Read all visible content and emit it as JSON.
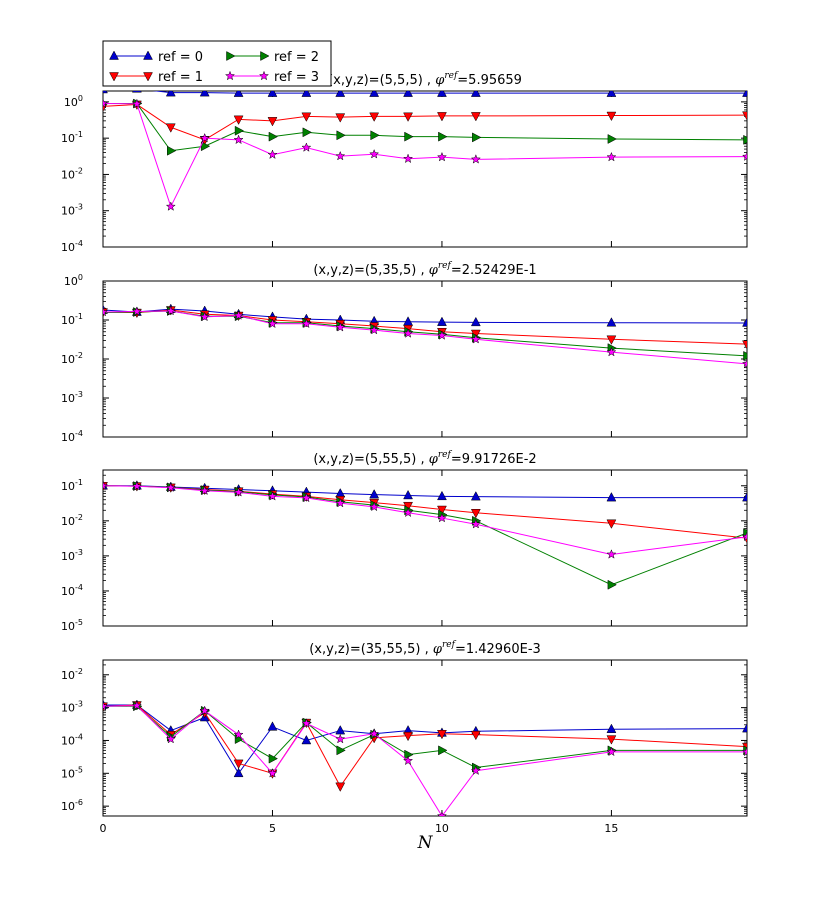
{
  "chart_data": {
    "type": "line",
    "xlabel": "N",
    "xlim": [
      0,
      19
    ],
    "x_ticks": [
      0,
      5,
      10,
      15
    ],
    "legend": {
      "placement": "top-left",
      "entries": [
        "ref = 0",
        "ref = 1",
        "ref = 2",
        "ref = 3"
      ]
    },
    "series_styles": [
      {
        "name": "ref = 0",
        "color": "#0000cc",
        "marker": "triangle-up"
      },
      {
        "name": "ref = 1",
        "color": "#ff0000",
        "marker": "triangle-down"
      },
      {
        "name": "ref = 2",
        "color": "#008000",
        "marker": "triangle-right"
      },
      {
        "name": "ref = 3",
        "color": "#ff00ff",
        "marker": "star"
      }
    ],
    "x": [
      0,
      1,
      2,
      3,
      4,
      5,
      6,
      7,
      8,
      9,
      10,
      11,
      15,
      19
    ],
    "panels": [
      {
        "title_prefix": "(x,y,z)=(5,5,5) , ",
        "phi": "φ",
        "phi_sup": "ref",
        "title_value": "=5.95659",
        "yscale": "log",
        "ylim_exp": [
          -4,
          0.3
        ],
        "y_ticks_exp": [
          -4,
          -3,
          -2,
          -1,
          0
        ],
        "y_tick_labels": [
          "10",
          "10",
          "10",
          "10",
          "10"
        ],
        "y_tick_sups": [
          "-4",
          "-3",
          "-2",
          "-1",
          "0"
        ],
        "series": [
          {
            "name": "ref = 0",
            "values": [
              2.2,
              2.3,
              1.8,
              1.8,
              1.75,
              1.75,
              1.75,
              1.75,
              1.75,
              1.75,
              1.75,
              1.75,
              1.75,
              1.75
            ]
          },
          {
            "name": "ref = 1",
            "values": [
              0.75,
              0.85,
              0.2,
              0.09,
              0.33,
              0.3,
              0.4,
              0.38,
              0.4,
              0.4,
              0.41,
              0.41,
              0.42,
              0.43
            ]
          },
          {
            "name": "ref = 2",
            "values": [
              0.9,
              0.9,
              0.045,
              0.06,
              0.16,
              0.11,
              0.145,
              0.12,
              0.12,
              0.11,
              0.11,
              0.105,
              0.095,
              0.09
            ]
          },
          {
            "name": "ref = 3",
            "values": [
              0.9,
              0.88,
              0.0013,
              0.1,
              0.09,
              0.035,
              0.055,
              0.032,
              0.036,
              0.027,
              0.03,
              0.026,
              0.03,
              0.031
            ]
          }
        ]
      },
      {
        "title_prefix": "(x,y,z)=(5,35,5) , ",
        "phi": "φ",
        "phi_sup": "ref",
        "title_value": "=2.52429E-1",
        "yscale": "log",
        "ylim_exp": [
          -4,
          0
        ],
        "y_ticks_exp": [
          -4,
          -3,
          -2,
          -1,
          0
        ],
        "y_tick_labels": [
          "10",
          "10",
          "10",
          "10",
          "10"
        ],
        "y_tick_sups": [
          "-4",
          "-3",
          "-2",
          "-1",
          "0"
        ],
        "series": [
          {
            "name": "ref = 0",
            "values": [
              0.18,
              0.16,
              0.19,
              0.17,
              0.14,
              0.12,
              0.105,
              0.1,
              0.093,
              0.09,
              0.088,
              0.087,
              0.085,
              0.084
            ]
          },
          {
            "name": "ref = 1",
            "values": [
              0.16,
              0.155,
              0.18,
              0.14,
              0.13,
              0.1,
              0.09,
              0.08,
              0.07,
              0.06,
              0.05,
              0.045,
              0.032,
              0.024
            ]
          },
          {
            "name": "ref = 2",
            "values": [
              0.155,
              0.16,
              0.17,
              0.125,
              0.125,
              0.085,
              0.085,
              0.07,
              0.06,
              0.05,
              0.043,
              0.035,
              0.019,
              0.012
            ]
          },
          {
            "name": "ref = 3",
            "values": [
              0.16,
              0.165,
              0.17,
              0.12,
              0.13,
              0.08,
              0.08,
              0.065,
              0.055,
              0.045,
              0.04,
              0.032,
              0.015,
              0.0075
            ]
          }
        ]
      },
      {
        "title_prefix": "(x,y,z)=(5,55,5) , ",
        "phi": "φ",
        "phi_sup": "ref",
        "title_value": "=9.91726E-2",
        "yscale": "log",
        "ylim_exp": [
          -5,
          -0.55
        ],
        "y_ticks_exp": [
          -5,
          -4,
          -3,
          -2,
          -1
        ],
        "y_tick_labels": [
          "10",
          "10",
          "10",
          "10",
          "10"
        ],
        "y_tick_sups": [
          "-5",
          "-4",
          "-3",
          "-2",
          "-1"
        ],
        "series": [
          {
            "name": "ref = 0",
            "values": [
              0.1,
              0.1,
              0.092,
              0.085,
              0.078,
              0.072,
              0.066,
              0.06,
              0.056,
              0.053,
              0.05,
              0.049,
              0.046,
              0.046
            ]
          },
          {
            "name": "ref = 1",
            "values": [
              0.1,
              0.098,
              0.09,
              0.078,
              0.07,
              0.058,
              0.05,
              0.04,
              0.033,
              0.027,
              0.021,
              0.017,
              0.0085,
              0.0032
            ]
          },
          {
            "name": "ref = 2",
            "values": [
              0.1,
              0.098,
              0.09,
              0.075,
              0.068,
              0.055,
              0.048,
              0.035,
              0.028,
              0.02,
              0.015,
              0.01,
              0.00015,
              0.0045
            ]
          },
          {
            "name": "ref = 3",
            "values": [
              0.1,
              0.097,
              0.088,
              0.072,
              0.065,
              0.05,
              0.045,
              0.032,
              0.025,
              0.017,
              0.012,
              0.008,
              0.0011,
              0.0035
            ]
          }
        ]
      },
      {
        "title_prefix": "(x,y,z)=(35,55,5) , ",
        "phi": "φ",
        "phi_sup": "ref",
        "title_value": "=1.42960E-3",
        "yscale": "log",
        "ylim_exp": [
          -6.3,
          -1.55
        ],
        "y_ticks_exp": [
          -6,
          -5,
          -4,
          -3,
          -2
        ],
        "y_tick_labels": [
          "10",
          "10",
          "10",
          "10",
          "10"
        ],
        "y_tick_sups": [
          "-6",
          "-5",
          "-4",
          "-3",
          "-2"
        ],
        "series": [
          {
            "name": "ref = 0",
            "values": [
              0.0012,
              0.0012,
              0.0002,
              0.0005,
              1e-05,
              0.00026,
              0.0001,
              0.0002,
              0.00016,
              0.0002,
              0.00017,
              0.00019,
              0.00022,
              0.00023
            ]
          },
          {
            "name": "ref = 1",
            "values": [
              0.0011,
              0.0012,
              0.00015,
              0.0007,
              2e-05,
              1e-05,
              0.00035,
              4e-06,
              0.00012,
              0.00014,
              0.00016,
              0.00015,
              0.00011,
              6.5e-05
            ]
          },
          {
            "name": "ref = 2",
            "values": [
              0.0011,
              0.0011,
              0.00013,
              0.0008,
              0.00011,
              2.8e-05,
              0.00035,
              5e-05,
              0.00015,
              3.7e-05,
              5e-05,
              1.5e-05,
              5e-05,
              5e-05
            ]
          },
          {
            "name": "ref = 3",
            "values": [
              0.0011,
              0.00115,
              0.00011,
              0.0008,
              0.00015,
              1e-05,
              0.00033,
              0.00011,
              0.00016,
              2.4e-05,
              5e-07,
              1.2e-05,
              4.5e-05,
              4.5e-05
            ]
          }
        ]
      }
    ]
  }
}
